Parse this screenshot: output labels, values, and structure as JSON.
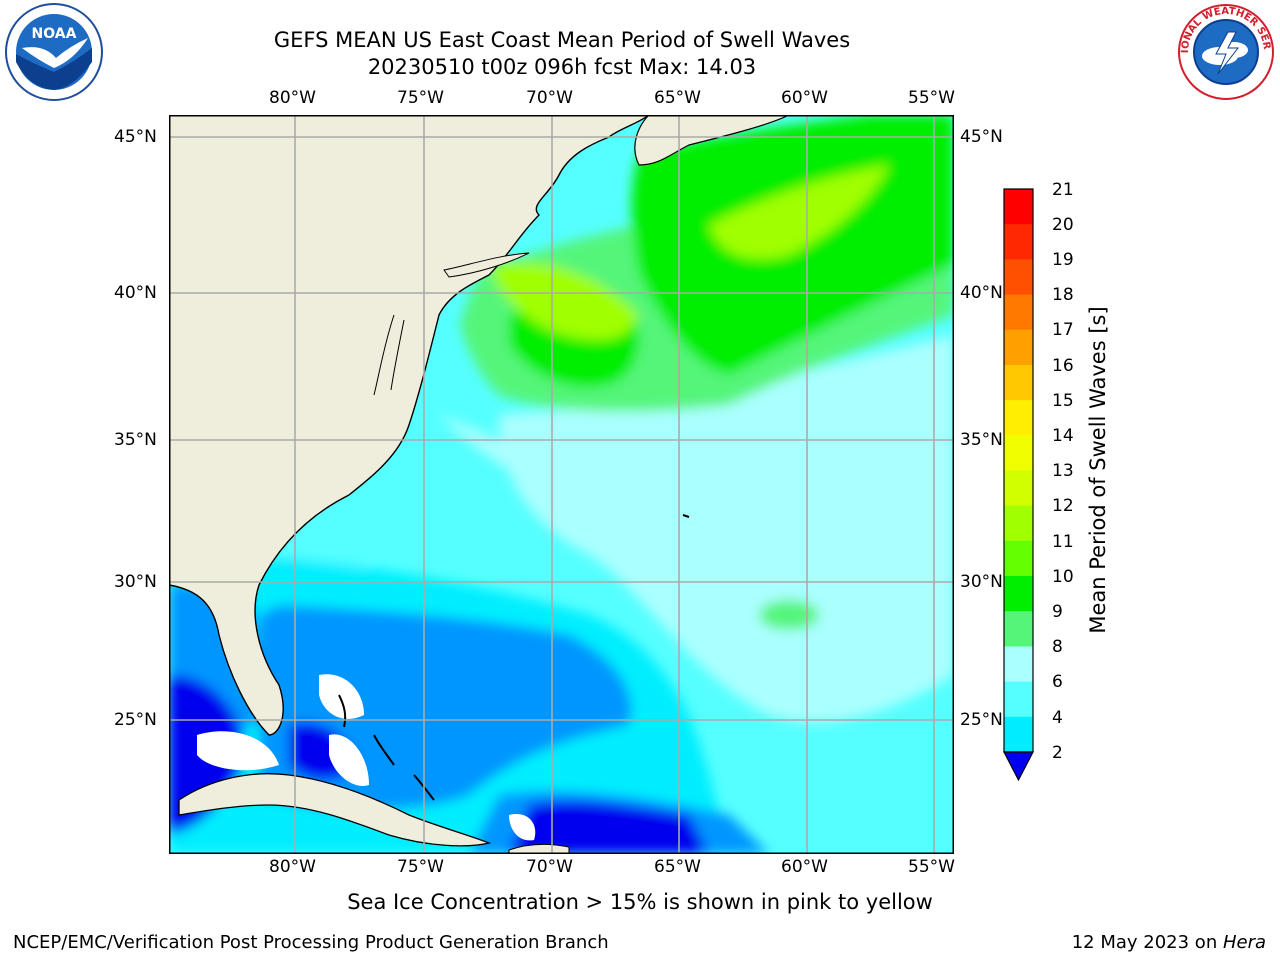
{
  "title": {
    "line1": "GEFS MEAN US East Coast Mean Period of Swell Waves",
    "line2": "20230510 t00z 096h fcst   Max: 14.03"
  },
  "logos": {
    "left": "NOAA",
    "right": "NATIONAL WEATHER SERVICE"
  },
  "map": {
    "lon_labels": [
      "80°W",
      "75°W",
      "70°W",
      "65°W",
      "60°W",
      "55°W"
    ],
    "lat_labels": [
      "45°N",
      "40°N",
      "35°N",
      "30°N",
      "25°N"
    ],
    "lon_range": [
      -85,
      -54.3
    ],
    "lat_range": [
      20.5,
      46
    ],
    "land_color": "#efeedc",
    "grid_color": "#aaaaaa"
  },
  "colorbar": {
    "label": "Mean Period of Swell Waves [s]",
    "ticks": [
      "21",
      "20",
      "19",
      "18",
      "17",
      "16",
      "15",
      "14",
      "13",
      "12",
      "11",
      "10",
      "9",
      "8",
      "6",
      "4",
      "2"
    ],
    "colors": [
      "#ff0000",
      "#ff2800",
      "#ff5000",
      "#ff7800",
      "#ffa000",
      "#ffc800",
      "#ffee00",
      "#f0ff00",
      "#d2ff00",
      "#a0ff00",
      "#64ff00",
      "#00ee00",
      "#55f57a",
      "#aaffff",
      "#55ffff",
      "#00eeff",
      "#0096ff",
      "#0000ee"
    ]
  },
  "note": "Sea Ice Concentration > 15% is shown in pink to yellow",
  "footer": {
    "left": "NCEP/EMC/Verification Post Processing Product Generation Branch",
    "date": "12 May 2023 on ",
    "machine": "Hera"
  }
}
